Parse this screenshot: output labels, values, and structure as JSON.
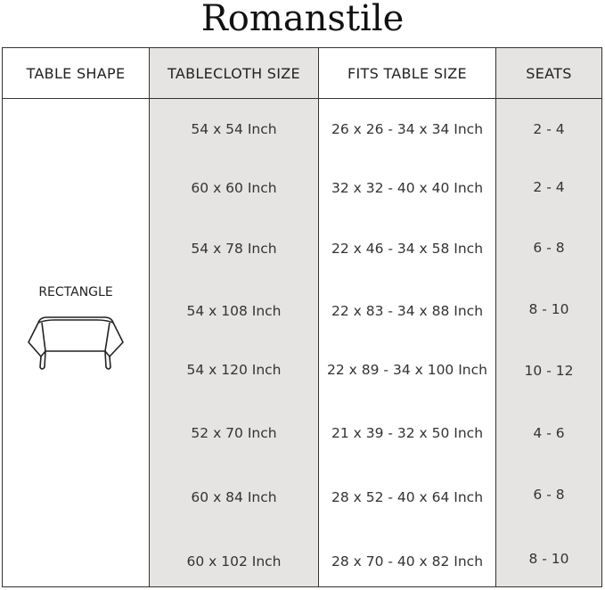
{
  "brand": "Romanstile",
  "headers": [
    "TABLE SHAPE",
    "TABLECLOTH SIZE",
    "FITS TABLE SIZE",
    "SEATS"
  ],
  "shape": {
    "label": "RECTANGLE",
    "icon": "rectangle-table-icon"
  },
  "rows": [
    {
      "size": "54 x 54 Inch",
      "fits": "26 x 26 - 34 x 34 Inch",
      "seats": "2 - 4"
    },
    {
      "size": "60 x 60 Inch",
      "fits": "32 x 32 - 40 x 40 Inch",
      "seats": "2 - 4"
    },
    {
      "size": "54 x 78 Inch",
      "fits": "22 x 46 - 34 x 58 Inch",
      "seats": "6 - 8"
    },
    {
      "size": "54 x 108 Inch",
      "fits": "22 x 83 - 34 x 88 Inch",
      "seats": "8 - 10"
    },
    {
      "size": "54 x 120 Inch",
      "fits": "22 x 89 - 34 x 100 Inch",
      "seats": "10 - 12"
    },
    {
      "size": "52 x 70 Inch",
      "fits": "21 x 39 - 32 x 50 Inch",
      "seats": "4 - 6"
    },
    {
      "size": "60 x 84 Inch",
      "fits": "28 x 52 - 40 x 64 Inch",
      "seats": "6 - 8"
    },
    {
      "size": "60 x 102 Inch",
      "fits": "28 x 70 - 40 x 82 Inch",
      "seats": "8 - 10"
    }
  ],
  "colors": {
    "shaded_column": "#e6e4e2",
    "border": "#333333"
  }
}
